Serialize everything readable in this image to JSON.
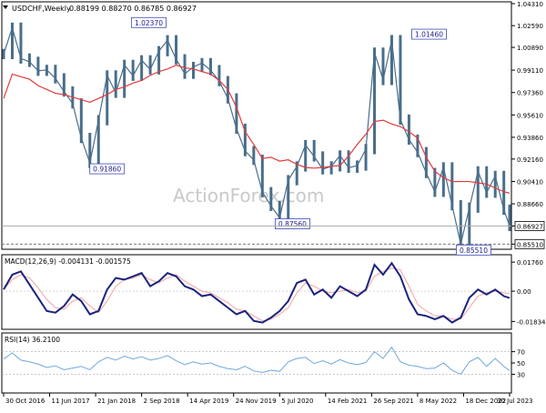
{
  "header": {
    "symbol": "USDCHF,Weekly",
    "ohlc": "0.88199 0.88270 0.86785 0.86927",
    "watermark": "ActionForex.com"
  },
  "colors": {
    "price": "#4a6e8a",
    "ma": "#e23b3b",
    "macd": "#1a237e",
    "signal": "#f2a3a3",
    "rsi": "#6fa8dc",
    "axis": "#000000",
    "dash": "#7a7a7a",
    "label_fill": "#ffffff",
    "label_border": "#3b4bb8",
    "label_text": "#1a1a8e"
  },
  "chart_data": [
    {
      "type": "candlestick",
      "title": "USDCHF,Weekly",
      "y_ticks": [
        "1.04310",
        "1.02590",
        "1.00890",
        "0.99110",
        "0.97360",
        "0.95610",
        "0.93860",
        "0.92160",
        "0.90410",
        "0.88660",
        "0.86927",
        "0.85510"
      ],
      "ylim": [
        0.8525,
        1.0431
      ],
      "x_tick_labels": [
        "30 Oct 2016",
        "11 Jun 2017",
        "21 Jan 2018",
        "2 Sep 2018",
        "14 Apr 2019",
        "24 Nov 2019",
        "5 Jul 2020",
        "14 Feb 2021",
        "26 Sep 2021",
        "8 May 2022",
        "18 Dec 2022",
        "30 Jul 2023"
      ],
      "xlim": [
        0,
        352
      ],
      "x_tick_index": [
        0,
        32,
        64,
        96,
        128,
        160,
        192,
        224,
        256,
        288,
        320,
        352
      ],
      "last_price": 0.86927,
      "support": 0.8551,
      "annotations": [
        {
          "text": "1.02370",
          "x": 113,
          "y": 1.0237
        },
        {
          "text": "0.91860",
          "x": 84,
          "y": 0.9186
        },
        {
          "text": "0.87560",
          "x": 213,
          "y": 0.8756
        },
        {
          "text": "1.01460",
          "x": 308,
          "y": 1.0146
        },
        {
          "text": "0.85510",
          "x": 339,
          "y": 0.8551
        }
      ],
      "series": [
        {
          "name": "",
          "style": "price",
          "x": [
            0,
            6,
            12,
            18,
            24,
            30,
            36,
            42,
            48,
            54,
            60,
            66,
            72,
            78,
            84,
            90,
            96,
            102,
            108,
            114,
            120,
            126,
            132,
            138,
            144,
            150,
            156,
            162,
            168,
            174,
            180,
            186,
            192,
            198,
            204,
            210,
            216,
            222,
            228,
            234,
            240,
            246,
            252,
            258,
            264,
            270,
            276,
            282,
            288,
            294,
            300,
            306,
            312,
            318,
            324,
            330,
            336,
            342,
            348,
            352
          ],
          "y": [
            1.0037,
            1.0243,
            1.0002,
            0.9976,
            0.9906,
            0.9913,
            0.9847,
            0.9744,
            0.9651,
            0.9381,
            0.9186,
            0.952,
            0.987,
            0.9734,
            0.9952,
            0.9867,
            0.9988,
            0.9917,
            1.0059,
            1.0145,
            0.9996,
            0.9883,
            0.9936,
            0.9966,
            0.9911,
            0.9825,
            0.969,
            0.9453,
            0.9278,
            0.921,
            0.8957,
            0.885,
            0.8756,
            0.9051,
            0.9158,
            0.9325,
            0.9236,
            0.9136,
            0.9159,
            0.9244,
            0.9148,
            0.9165,
            0.9294,
            1.0048,
            0.9834,
            1.0146,
            0.9524,
            0.9368,
            0.927,
            0.9107,
            0.896,
            0.9151,
            0.8855,
            0.8551,
            0.8836,
            0.912,
            0.8953,
            0.9084,
            0.882,
            0.86927
          ]
        },
        {
          "name": "",
          "style": "ma",
          "x": [
            0,
            6,
            12,
            18,
            24,
            30,
            36,
            42,
            48,
            54,
            60,
            66,
            72,
            78,
            84,
            90,
            96,
            102,
            108,
            114,
            120,
            126,
            132,
            138,
            144,
            150,
            156,
            162,
            168,
            174,
            180,
            186,
            192,
            198,
            204,
            210,
            216,
            222,
            228,
            234,
            240,
            246,
            252,
            258,
            264,
            270,
            276,
            282,
            288,
            294,
            300,
            306,
            312,
            318,
            324,
            330,
            336,
            342,
            348,
            352
          ],
          "y": [
            0.969,
            0.988,
            0.986,
            0.984,
            0.979,
            0.976,
            0.973,
            0.972,
            0.97,
            0.968,
            0.966,
            0.969,
            0.972,
            0.976,
            0.978,
            0.981,
            0.983,
            0.987,
            0.99,
            0.992,
            0.995,
            0.993,
            0.992,
            0.99,
            0.988,
            0.983,
            0.976,
            0.962,
            0.943,
            0.933,
            0.922,
            0.923,
            0.92,
            0.921,
            0.9175,
            0.915,
            0.9145,
            0.915,
            0.916,
            0.9165,
            0.924,
            0.933,
            0.941,
            0.951,
            0.952,
            0.949,
            0.947,
            0.943,
            0.938,
            0.923,
            0.912,
            0.907,
            0.904,
            0.904,
            0.904,
            0.903,
            0.902,
            0.899,
            0.896,
            0.895
          ]
        }
      ]
    },
    {
      "type": "line",
      "title": "MACD(12,26,9) -0.004131 -0.001575",
      "y_ticks": [
        "0.01760",
        "0.00",
        "-0.01834"
      ],
      "ylim": [
        -0.022,
        0.021
      ],
      "series": [
        {
          "name": "",
          "style": "macd",
          "x": [
            0,
            6,
            12,
            18,
            24,
            30,
            36,
            42,
            48,
            54,
            60,
            66,
            72,
            78,
            84,
            90,
            96,
            102,
            108,
            114,
            120,
            126,
            132,
            138,
            144,
            150,
            156,
            162,
            168,
            174,
            180,
            186,
            192,
            198,
            204,
            210,
            216,
            222,
            228,
            234,
            240,
            246,
            252,
            258,
            264,
            270,
            276,
            282,
            288,
            294,
            300,
            306,
            312,
            318,
            324,
            330,
            336,
            342,
            348,
            352
          ],
          "y": [
            0.001,
            0.01,
            0.012,
            0.004,
            -0.004,
            -0.012,
            -0.013,
            -0.009,
            -0.002,
            -0.006,
            -0.014,
            -0.012,
            0.001,
            0.008,
            0.007,
            0.009,
            0.011,
            0.003,
            0.006,
            0.011,
            0.009,
            0.003,
            0.001,
            -0.003,
            -0.002,
            -0.006,
            -0.01,
            -0.014,
            -0.012,
            -0.018,
            -0.019,
            -0.016,
            -0.012,
            -0.006,
            0.005,
            0.007,
            -0.002,
            0.001,
            -0.004,
            0.003,
            0.0,
            -0.003,
            0.001,
            0.016,
            0.01,
            0.017,
            0.009,
            -0.005,
            -0.014,
            -0.015,
            -0.017,
            -0.015,
            -0.019,
            -0.016,
            -0.004,
            0.001,
            -0.002,
            0.001,
            -0.003,
            -0.004131
          ]
        },
        {
          "name": "",
          "style": "signal",
          "x": [
            0,
            6,
            12,
            18,
            24,
            30,
            36,
            42,
            48,
            54,
            60,
            66,
            72,
            78,
            84,
            90,
            96,
            102,
            108,
            114,
            120,
            126,
            132,
            138,
            144,
            150,
            156,
            162,
            168,
            174,
            180,
            186,
            192,
            198,
            204,
            210,
            216,
            222,
            228,
            234,
            240,
            246,
            252,
            258,
            264,
            270,
            276,
            282,
            288,
            294,
            300,
            306,
            312,
            318,
            324,
            330,
            336,
            342,
            348,
            352
          ],
          "y": [
            0.001,
            0.007,
            0.01,
            0.008,
            0.002,
            -0.005,
            -0.01,
            -0.011,
            -0.006,
            -0.004,
            -0.009,
            -0.013,
            -0.006,
            0.003,
            0.007,
            0.008,
            0.01,
            0.007,
            0.005,
            0.008,
            0.01,
            0.006,
            0.003,
            0.0,
            -0.001,
            -0.004,
            -0.007,
            -0.011,
            -0.012,
            -0.015,
            -0.018,
            -0.017,
            -0.014,
            -0.01,
            -0.001,
            0.005,
            0.003,
            0.0,
            -0.001,
            0.0,
            0.001,
            -0.001,
            0.0,
            0.009,
            0.012,
            0.014,
            0.013,
            0.003,
            -0.008,
            -0.012,
            -0.015,
            -0.015,
            -0.017,
            -0.017,
            -0.01,
            -0.003,
            -0.001,
            0.0,
            -0.001,
            -0.001575
          ]
        }
      ]
    },
    {
      "type": "line",
      "title": "RSI(14) 36.2100",
      "y_ticks": [
        "70",
        "50",
        "30"
      ],
      "ylim": [
        0,
        100
      ],
      "levels": [
        70,
        30
      ],
      "series": [
        {
          "name": "",
          "style": "rsi",
          "x": [
            0,
            6,
            12,
            18,
            24,
            30,
            36,
            42,
            48,
            54,
            60,
            66,
            72,
            78,
            84,
            90,
            96,
            102,
            108,
            114,
            120,
            126,
            132,
            138,
            144,
            150,
            156,
            162,
            168,
            174,
            180,
            186,
            192,
            198,
            204,
            210,
            216,
            222,
            228,
            234,
            240,
            246,
            252,
            258,
            264,
            270,
            276,
            282,
            288,
            294,
            300,
            306,
            312,
            318,
            324,
            330,
            336,
            342,
            348,
            352
          ],
          "y": [
            57,
            68,
            55,
            52,
            48,
            42,
            45,
            38,
            41,
            44,
            38,
            52,
            60,
            55,
            62,
            57,
            61,
            55,
            58,
            63,
            54,
            47,
            52,
            48,
            50,
            44,
            40,
            38,
            44,
            36,
            33,
            37,
            35,
            52,
            58,
            60,
            49,
            54,
            48,
            56,
            50,
            47,
            51,
            70,
            58,
            78,
            52,
            46,
            44,
            40,
            41,
            50,
            37,
            30,
            52,
            60,
            44,
            58,
            44,
            36.21
          ]
        }
      ]
    }
  ]
}
